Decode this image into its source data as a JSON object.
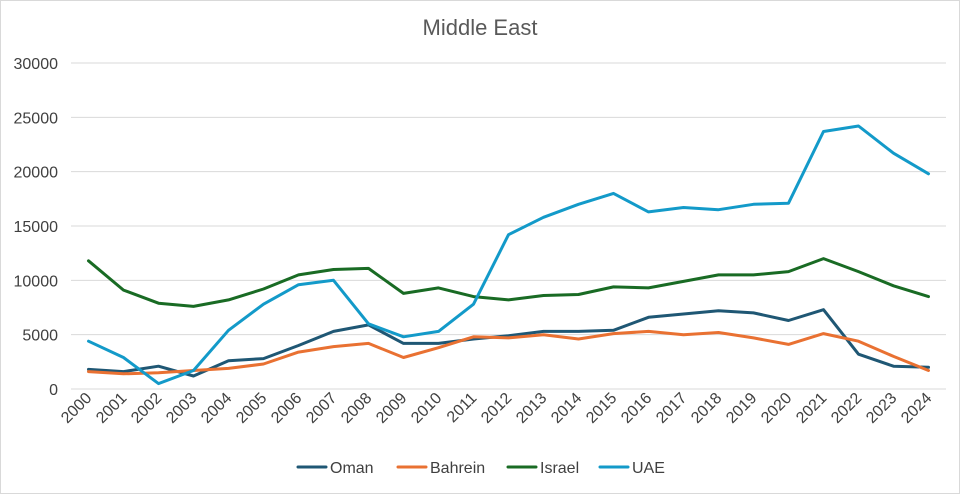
{
  "chart_data": {
    "type": "line",
    "title": "Middle East",
    "xlabel": "",
    "ylabel": "",
    "ylim": [
      0,
      30000
    ],
    "yticks": [
      0,
      5000,
      10000,
      15000,
      20000,
      25000,
      30000
    ],
    "ytick_labels": [
      "0",
      "5000",
      "10000",
      "15000",
      "20000",
      "25000",
      "30000"
    ],
    "grid": true,
    "legend_position": "bottom",
    "categories": [
      "2000",
      "2001",
      "2002",
      "2003",
      "2004",
      "2005",
      "2006",
      "2007",
      "2008",
      "2009",
      "2010",
      "2011",
      "2012",
      "2013",
      "2014",
      "2015",
      "2016",
      "2017",
      "2018",
      "2019",
      "2020",
      "2021",
      "2022",
      "2023",
      "2024"
    ],
    "series": [
      {
        "name": "Oman",
        "color": "#1f5774",
        "values": [
          1800,
          1600,
          2100,
          1200,
          2600,
          2800,
          4000,
          5300,
          5900,
          4200,
          4200,
          4600,
          4900,
          5300,
          5300,
          5400,
          6600,
          6900,
          7200,
          7000,
          6300,
          7300,
          3200,
          2100,
          2000
        ]
      },
      {
        "name": "Bahrein",
        "color": "#e97132",
        "values": [
          1600,
          1400,
          1500,
          1700,
          1900,
          2300,
          3400,
          3900,
          4200,
          2900,
          3800,
          4800,
          4700,
          5000,
          4600,
          5100,
          5300,
          5000,
          5200,
          4700,
          4100,
          5100,
          4400,
          3000,
          1700
        ]
      },
      {
        "name": "Israel",
        "color": "#196b24",
        "values": [
          11800,
          9100,
          7900,
          7600,
          8200,
          9200,
          10500,
          11000,
          11100,
          8800,
          9300,
          8500,
          8200,
          8600,
          8700,
          9400,
          9300,
          9900,
          10500,
          10500,
          10800,
          12000,
          10800,
          9500,
          8500
        ]
      },
      {
        "name": "UAE",
        "color": "#139ac9",
        "values": [
          4400,
          2900,
          500,
          1700,
          5400,
          7800,
          9600,
          10000,
          6000,
          4800,
          5300,
          7800,
          14200,
          15800,
          17000,
          18000,
          16300,
          16700,
          16500,
          17000,
          17100,
          23700,
          24200,
          21700,
          19800
        ]
      }
    ]
  }
}
